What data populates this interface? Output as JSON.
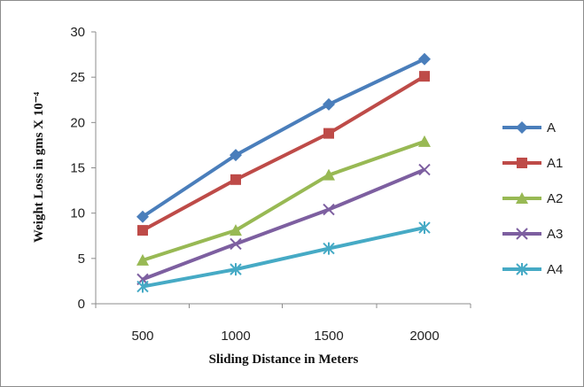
{
  "chart_data": {
    "type": "line",
    "title": "",
    "xlabel": "Sliding Distance in Meters",
    "ylabel": "Weight Loss in gms X 10⁻⁴",
    "x": [
      500,
      1000,
      1500,
      2000
    ],
    "ylim": [
      0,
      30
    ],
    "yticks": [
      0,
      5,
      10,
      15,
      20,
      25,
      30
    ],
    "grid": false,
    "legend": "right",
    "series": [
      {
        "name": "A",
        "values": [
          9.6,
          16.4,
          22.0,
          27.0
        ],
        "color": "#4a7ebb",
        "marker": "diamond"
      },
      {
        "name": "A1",
        "values": [
          8.1,
          13.7,
          18.8,
          25.1
        ],
        "color": "#be4b48",
        "marker": "square"
      },
      {
        "name": "A2",
        "values": [
          4.8,
          8.1,
          14.2,
          17.9
        ],
        "color": "#98b954",
        "marker": "triangle"
      },
      {
        "name": "A3",
        "values": [
          2.7,
          6.6,
          10.4,
          14.8
        ],
        "color": "#7d5fa0",
        "marker": "x"
      },
      {
        "name": "A4",
        "values": [
          1.9,
          3.8,
          6.1,
          8.4
        ],
        "color": "#46aac5",
        "marker": "star"
      }
    ]
  }
}
